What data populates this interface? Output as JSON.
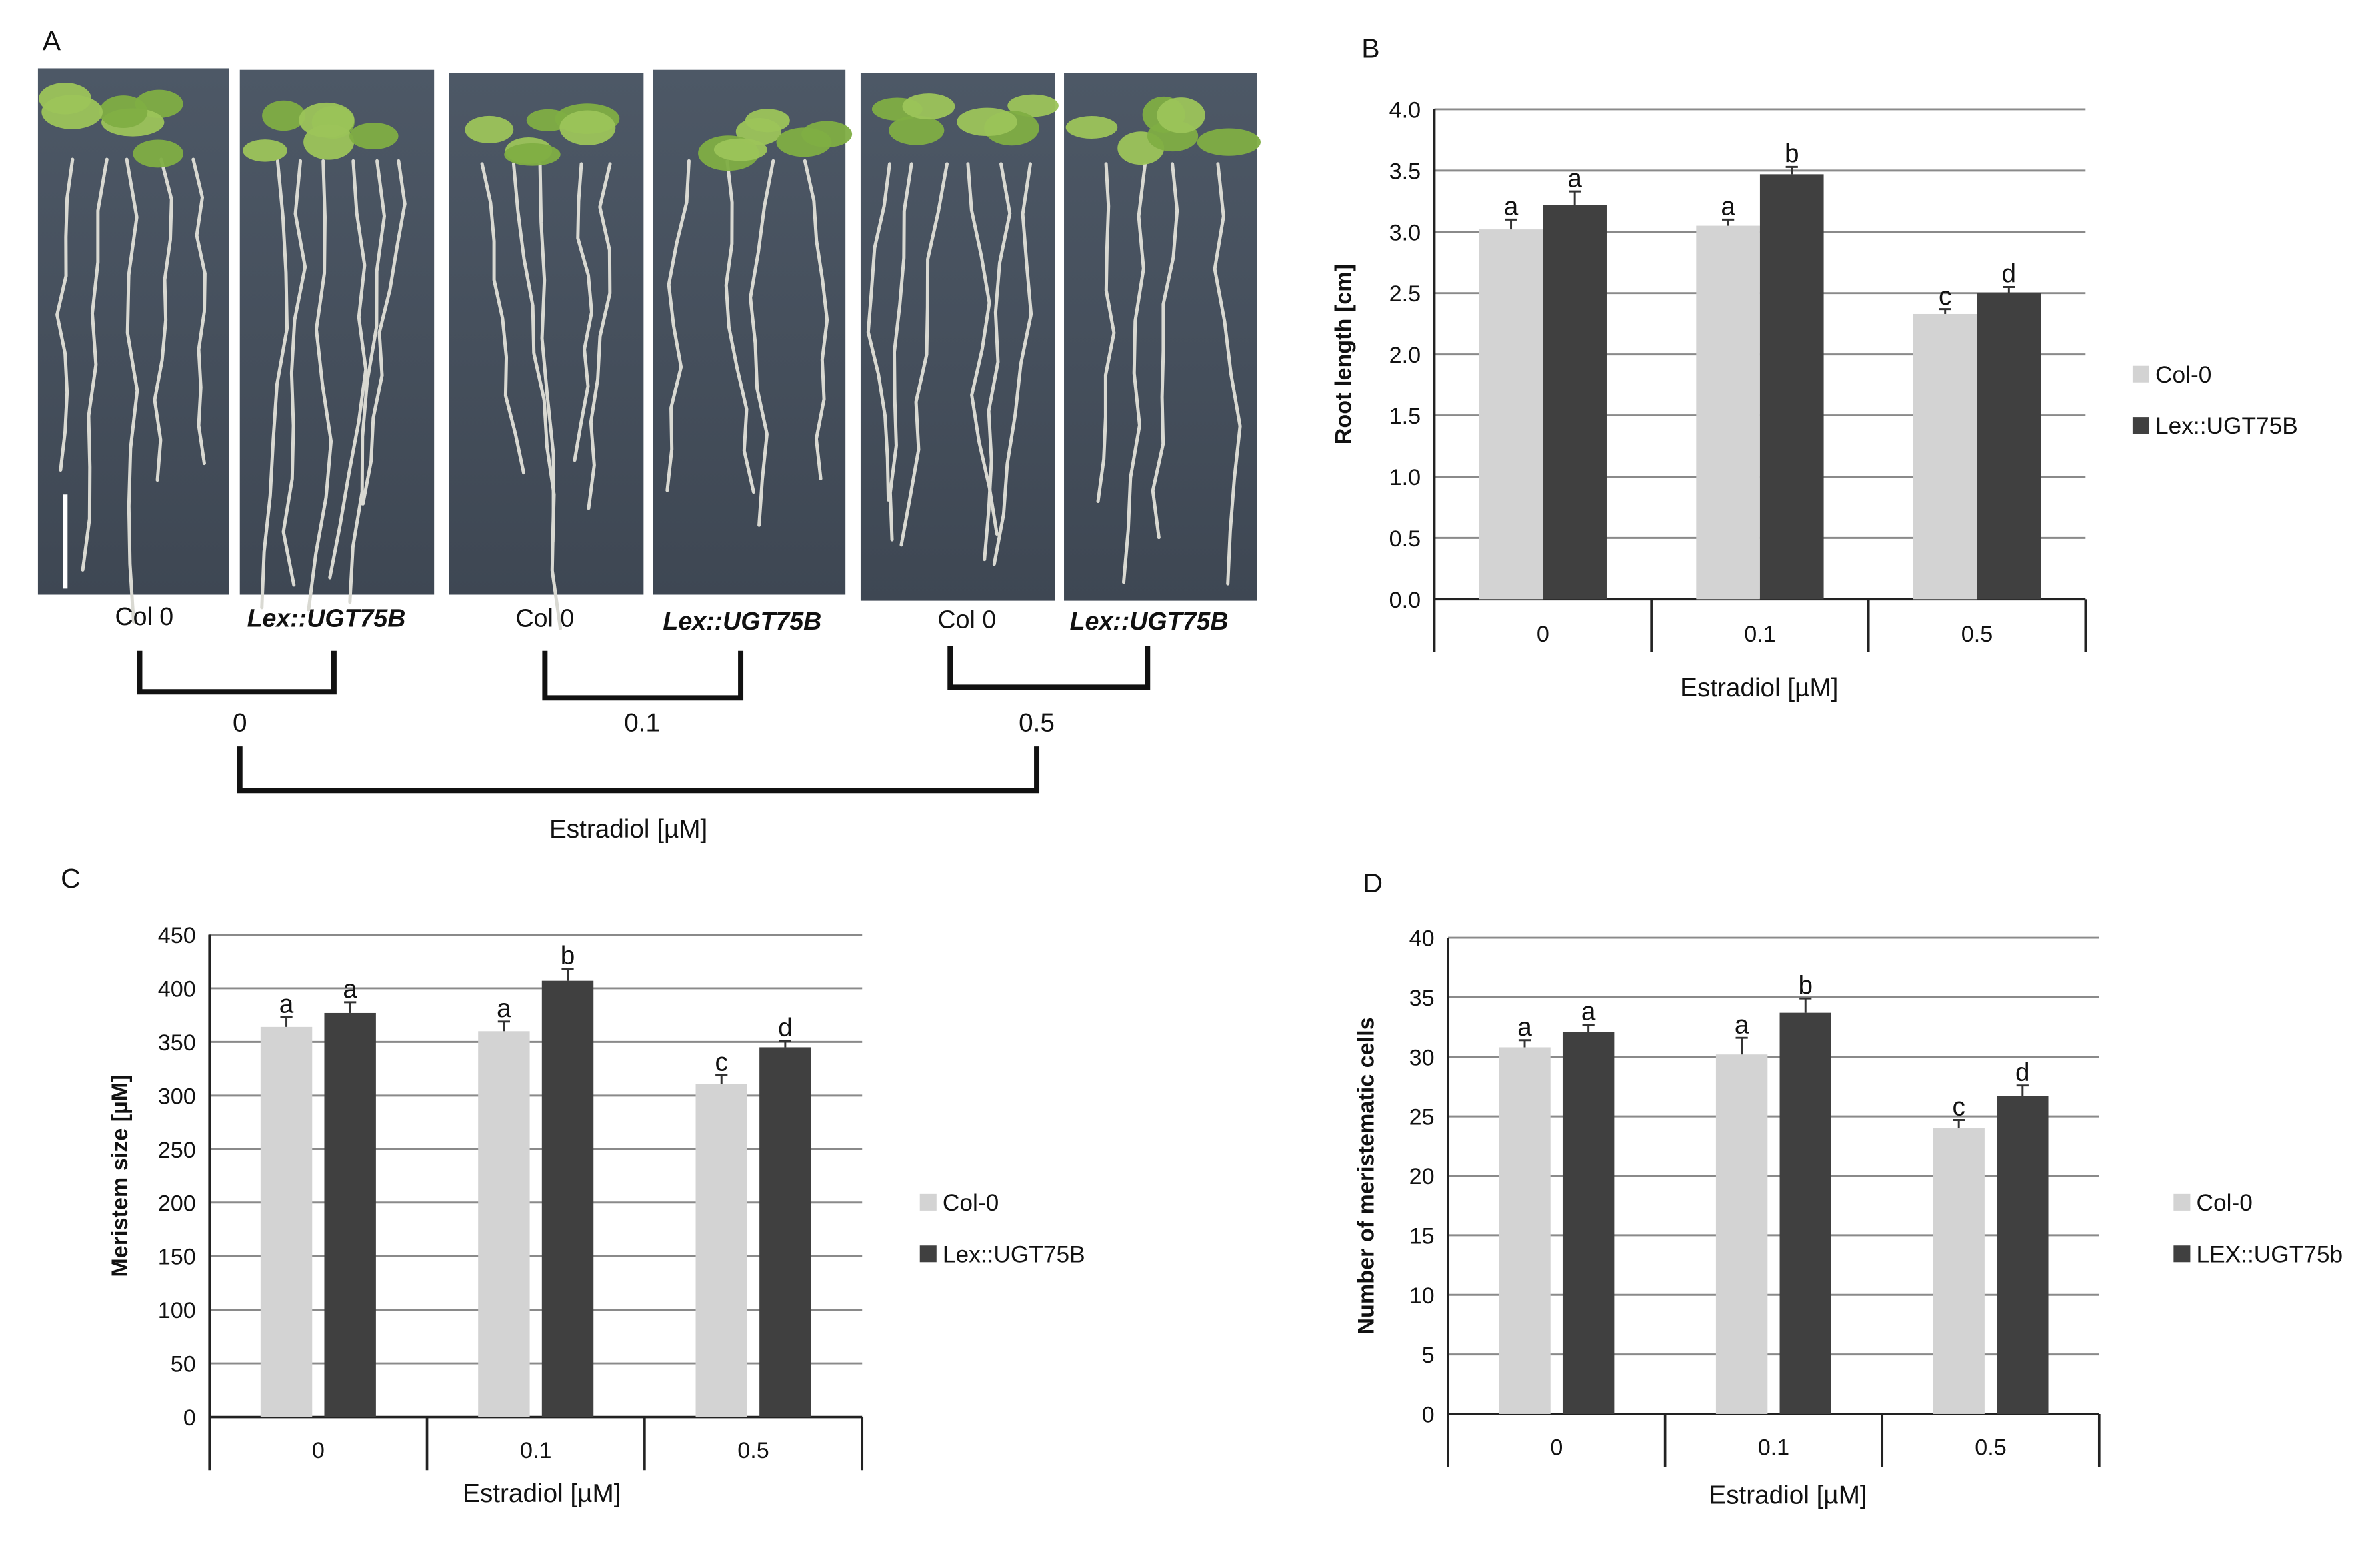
{
  "panels": {
    "A": {
      "letter": "A",
      "genotype_labels": [
        "Col 0",
        "Lex::UGT75B",
        "Col 0",
        "Lex::UGT75B",
        "Col 0",
        "Lex::UGT75B"
      ],
      "conc_labels": [
        "0",
        "0.1",
        "0.5"
      ],
      "axis_label": "Estradiol [µM]"
    }
  },
  "colors": {
    "col0": "#d3d3d3",
    "lex": "#404040",
    "grid": "#8a8a8a",
    "axis": "#222222"
  },
  "chart_data": [
    {
      "panel": "B",
      "type": "bar",
      "categories": [
        "0",
        "0.1",
        "0.5"
      ],
      "xlabel": "Estradiol [µM]",
      "ylabel": "Root length [cm]",
      "ylim": [
        0,
        4
      ],
      "yticks": [
        "0.0",
        "0.5",
        "1.0",
        "1.5",
        "2.0",
        "2.5",
        "3.0",
        "3.5",
        "4.0"
      ],
      "grid": true,
      "legend_position": "right",
      "series": [
        {
          "name": "Col-0",
          "values": [
            3.02,
            3.05,
            2.33
          ],
          "errors": [
            0.08,
            0.05,
            0.04
          ],
          "labels": [
            "a",
            "a",
            "c"
          ],
          "color": "#d3d3d3"
        },
        {
          "name": "Lex::UGT75B",
          "values": [
            3.22,
            3.47,
            2.5
          ],
          "errors": [
            0.11,
            0.06,
            0.05
          ],
          "labels": [
            "a",
            "b",
            "d"
          ],
          "color": "#404040"
        }
      ]
    },
    {
      "panel": "C",
      "type": "bar",
      "categories": [
        "0",
        "0.1",
        "0.5"
      ],
      "xlabel": "Estradiol [µM]",
      "ylabel": "Meristem size [µM]",
      "ylim": [
        0,
        450
      ],
      "yticks": [
        "0",
        "50",
        "100",
        "150",
        "200",
        "250",
        "300",
        "350",
        "400",
        "450"
      ],
      "grid": true,
      "legend_position": "right",
      "series": [
        {
          "name": "Col-0",
          "values": [
            364,
            360,
            311
          ],
          "errors": [
            9,
            9,
            8
          ],
          "labels": [
            "a",
            "a",
            "c"
          ],
          "color": "#d3d3d3"
        },
        {
          "name": "Lex::UGT75B",
          "values": [
            377,
            407,
            345
          ],
          "errors": [
            10,
            11,
            6
          ],
          "labels": [
            "a",
            "b",
            "d"
          ],
          "color": "#404040"
        }
      ]
    },
    {
      "panel": "D",
      "type": "bar",
      "categories": [
        "0",
        "0.1",
        "0.5"
      ],
      "xlabel": "Estradiol [µM]",
      "ylabel": "Number of  meristematic cells",
      "ylim": [
        0,
        40
      ],
      "yticks": [
        "0",
        "5",
        "10",
        "15",
        "20",
        "25",
        "30",
        "35",
        "40"
      ],
      "grid": true,
      "legend_position": "right",
      "series": [
        {
          "name": "Col-0",
          "values": [
            30.8,
            30.2,
            24.0
          ],
          "errors": [
            0.6,
            1.4,
            0.7
          ],
          "labels": [
            "a",
            "a",
            "c"
          ],
          "color": "#d3d3d3"
        },
        {
          "name": "LEX::UGT75b",
          "values": [
            32.1,
            33.7,
            26.7
          ],
          "errors": [
            0.6,
            1.2,
            0.9
          ],
          "labels": [
            "a",
            "b",
            "d"
          ],
          "color": "#404040"
        }
      ]
    }
  ]
}
